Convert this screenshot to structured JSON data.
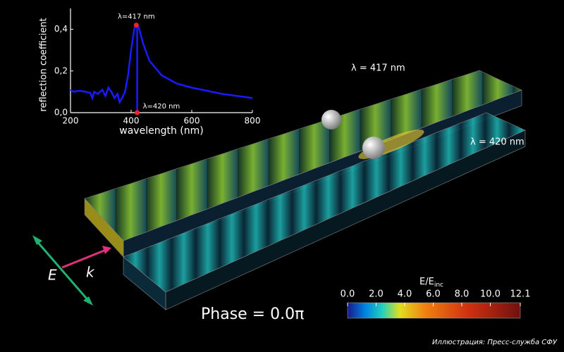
{
  "chart_data": [
    {
      "type": "line",
      "xlabel": "wavelength (nm)",
      "ylabel": "reflection coefficient",
      "x": [
        200,
        210,
        230,
        250,
        265,
        272,
        278,
        290,
        305,
        315,
        325,
        335,
        345,
        355,
        362,
        370,
        380,
        390,
        400,
        410,
        417,
        425,
        440,
        460,
        500,
        550,
        600,
        700,
        800
      ],
      "series": [
        {
          "color": "#1a1aff",
          "values": [
            0.11,
            0.1,
            0.105,
            0.1,
            0.095,
            0.07,
            0.1,
            0.09,
            0.11,
            0.08,
            0.12,
            0.1,
            0.07,
            0.09,
            0.05,
            0.07,
            0.1,
            0.18,
            0.3,
            0.4,
            0.42,
            0.41,
            0.33,
            0.25,
            0.18,
            0.14,
            0.12,
            0.09,
            0.07
          ]
        }
      ],
      "annotations": [
        {
          "text": "λ=417 nm",
          "x": 417,
          "y": 0.42
        },
        {
          "text": "λ=420 nm",
          "x": 420,
          "y": 0
        }
      ],
      "xlim": [
        200,
        800
      ],
      "xticks": [
        200,
        400,
        600,
        800
      ],
      "ylim": [
        0,
        0.5
      ],
      "yticks": [
        {
          "value": 0,
          "label": "0,0"
        },
        {
          "value": 0.2,
          "label": "0,2"
        },
        {
          "value": 0.4,
          "label": "0,4"
        }
      ]
    },
    {
      "type": "colorbar",
      "title_main": "E/E",
      "title_sub": "inc",
      "xlim": [
        0,
        12.1
      ],
      "xticks": [
        {
          "value": 0,
          "label": "0.0"
        },
        {
          "value": 2,
          "label": "2.0"
        },
        {
          "value": 4,
          "label": "4.0"
        },
        {
          "value": 6,
          "label": "6.0"
        },
        {
          "value": 8,
          "label": "8.0"
        },
        {
          "value": 10,
          "label": "10.0"
        },
        12.1
      ]
    }
  ],
  "labels": {
    "top_wave": "λ = 417 nm",
    "bottom_wave": "λ = 420 nm",
    "phase": "Phase = 0.0π",
    "e_field": "E",
    "k_vector": "k",
    "credit": "Иллюстрация: Пресс-служба СФУ"
  }
}
